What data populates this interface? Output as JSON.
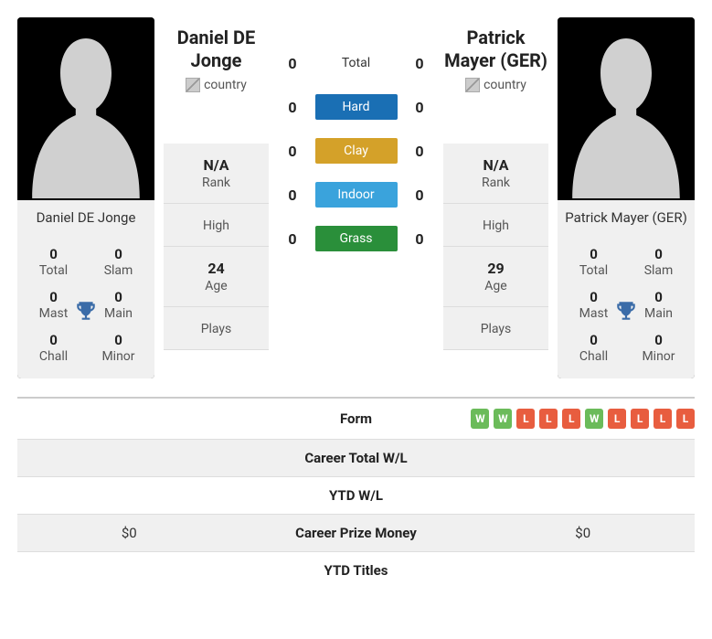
{
  "colors": {
    "hard": "#1a6fb4",
    "clay": "#d4a129",
    "indoor": "#3aa3dc",
    "grass": "#2a8f3a",
    "win": "#6bbb5a",
    "loss": "#e85d3f",
    "trophy": "#3b6ca8"
  },
  "player1": {
    "name": "Daniel DE Jonge",
    "heading": "Daniel DE Jonge",
    "country_alt": "country",
    "titles": {
      "total": {
        "value": "0",
        "label": "Total"
      },
      "slam": {
        "value": "0",
        "label": "Slam"
      },
      "mast": {
        "value": "0",
        "label": "Mast"
      },
      "main": {
        "value": "0",
        "label": "Main"
      },
      "chall": {
        "value": "0",
        "label": "Chall"
      },
      "minor": {
        "value": "0",
        "label": "Minor"
      }
    },
    "info": {
      "rank": {
        "value": "N/A",
        "label": "Rank"
      },
      "high": {
        "value": "",
        "label": "High"
      },
      "age": {
        "value": "24",
        "label": "Age"
      },
      "plays": {
        "value": "",
        "label": "Plays"
      }
    }
  },
  "player2": {
    "name": "Patrick Mayer (GER)",
    "heading": "Patrick Mayer (GER)",
    "country_alt": "country",
    "titles": {
      "total": {
        "value": "0",
        "label": "Total"
      },
      "slam": {
        "value": "0",
        "label": "Slam"
      },
      "mast": {
        "value": "0",
        "label": "Mast"
      },
      "main": {
        "value": "0",
        "label": "Main"
      },
      "chall": {
        "value": "0",
        "label": "Chall"
      },
      "minor": {
        "value": "0",
        "label": "Minor"
      }
    },
    "info": {
      "rank": {
        "value": "N/A",
        "label": "Rank"
      },
      "high": {
        "value": "",
        "label": "High"
      },
      "age": {
        "value": "29",
        "label": "Age"
      },
      "plays": {
        "value": "",
        "label": "Plays"
      }
    }
  },
  "h2h": {
    "total": {
      "p1": "0",
      "label": "Total",
      "p2": "0"
    },
    "hard": {
      "p1": "0",
      "label": "Hard",
      "p2": "0"
    },
    "clay": {
      "p1": "0",
      "label": "Clay",
      "p2": "0"
    },
    "indoor": {
      "p1": "0",
      "label": "Indoor",
      "p2": "0"
    },
    "grass": {
      "p1": "0",
      "label": "Grass",
      "p2": "0"
    }
  },
  "compare": {
    "form": {
      "label": "Form"
    },
    "p2_form": [
      "W",
      "W",
      "L",
      "L",
      "L",
      "W",
      "L",
      "L",
      "L",
      "L"
    ],
    "career_wl": {
      "label": "Career Total W/L",
      "p1": "",
      "p2": ""
    },
    "ytd_wl": {
      "label": "YTD W/L",
      "p1": "",
      "p2": ""
    },
    "prize": {
      "label": "Career Prize Money",
      "p1": "$0",
      "p2": "$0"
    },
    "ytd_titles": {
      "label": "YTD Titles",
      "p1": "",
      "p2": ""
    }
  }
}
